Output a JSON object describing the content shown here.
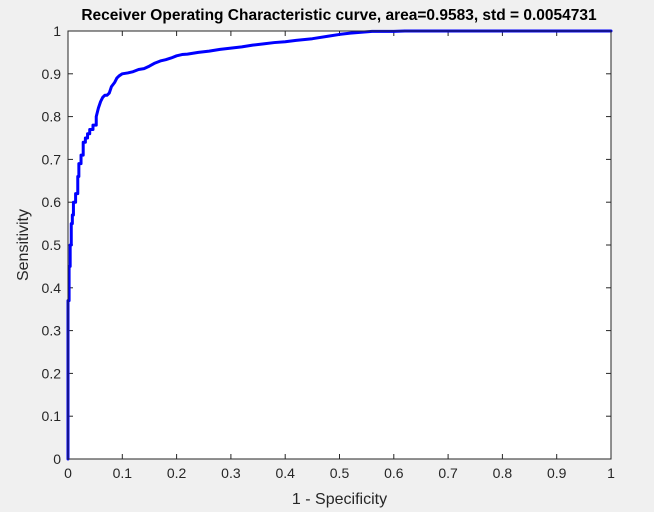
{
  "chart_data": {
    "type": "line",
    "title": "Receiver Operating Characteristic curve, area=0.9583, std = 0.0054731",
    "xlabel": "1 - Specificity",
    "ylabel": "Sensitivity",
    "xlim": [
      0,
      1
    ],
    "ylim": [
      0,
      1
    ],
    "xticks": [
      0,
      0.1,
      0.2,
      0.3,
      0.4,
      0.5,
      0.6,
      0.7,
      0.8,
      0.9,
      1
    ],
    "xtick_labels": [
      "0",
      "0.1",
      "0.2",
      "0.3",
      "0.4",
      "0.5",
      "0.6",
      "0.7",
      "0.8",
      "0.9",
      "1"
    ],
    "yticks": [
      0,
      0.1,
      0.2,
      0.3,
      0.4,
      0.5,
      0.6,
      0.7,
      0.8,
      0.9,
      1
    ],
    "ytick_labels": [
      "0",
      "0.1",
      "0.2",
      "0.3",
      "0.4",
      "0.5",
      "0.6",
      "0.7",
      "0.8",
      "0.9",
      "1"
    ],
    "grid": false,
    "line_color": "#0000ff",
    "series": [
      {
        "x": [
          0,
          0,
          0.002,
          0.002,
          0.004,
          0.004,
          0.006,
          0.006,
          0.008,
          0.008,
          0.01,
          0.01,
          0.014,
          0.014,
          0.018,
          0.018,
          0.02,
          0.02,
          0.024,
          0.024,
          0.028,
          0.028,
          0.032,
          0.032,
          0.036,
          0.036,
          0.04,
          0.04,
          0.046,
          0.046,
          0.052,
          0.052,
          0.056,
          0.06,
          0.064,
          0.068,
          0.072,
          0.076,
          0.08,
          0.086,
          0.09,
          0.094,
          0.1,
          0.11,
          0.12,
          0.13,
          0.14,
          0.15,
          0.16,
          0.17,
          0.18,
          0.19,
          0.2,
          0.21,
          0.22,
          0.23,
          0.24,
          0.26,
          0.28,
          0.3,
          0.32,
          0.34,
          0.36,
          0.38,
          0.4,
          0.42,
          0.45,
          0.48,
          0.5,
          0.52,
          0.54,
          0.56,
          0.6,
          0.62,
          0.7,
          0.8,
          1.0
        ],
        "y": [
          0,
          0.37,
          0.37,
          0.45,
          0.45,
          0.5,
          0.5,
          0.55,
          0.55,
          0.57,
          0.57,
          0.6,
          0.6,
          0.62,
          0.62,
          0.66,
          0.66,
          0.69,
          0.69,
          0.71,
          0.71,
          0.74,
          0.74,
          0.75,
          0.75,
          0.76,
          0.76,
          0.77,
          0.77,
          0.78,
          0.78,
          0.8,
          0.82,
          0.835,
          0.845,
          0.85,
          0.85,
          0.855,
          0.87,
          0.88,
          0.89,
          0.895,
          0.9,
          0.902,
          0.905,
          0.91,
          0.912,
          0.918,
          0.925,
          0.93,
          0.933,
          0.937,
          0.942,
          0.945,
          0.946,
          0.948,
          0.95,
          0.953,
          0.957,
          0.96,
          0.963,
          0.967,
          0.97,
          0.973,
          0.975,
          0.978,
          0.982,
          0.988,
          0.992,
          0.995,
          0.997,
          0.999,
          0.999,
          1.0,
          1.0,
          1.0,
          1.0
        ]
      }
    ]
  }
}
